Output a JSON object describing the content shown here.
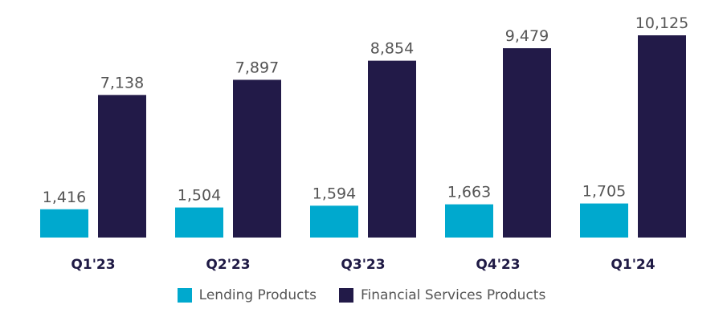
{
  "chart_data": {
    "type": "bar",
    "categories": [
      "Q1'23",
      "Q2'23",
      "Q3'23",
      "Q4'23",
      "Q1'24"
    ],
    "series": [
      {
        "name": "Lending Products",
        "color": "#00a9ce",
        "values": [
          1416,
          1504,
          1594,
          1663,
          1705
        ],
        "labels": [
          "1,416",
          "1,504",
          "1,594",
          "1,663",
          "1,705"
        ]
      },
      {
        "name": "Financial Services Products",
        "color": "#221a48",
        "values": [
          7138,
          7897,
          8854,
          9479,
          10125
        ],
        "labels": [
          "7,138",
          "7,897",
          "8,854",
          "9,479",
          "10,125"
        ]
      }
    ],
    "title": "",
    "xlabel": "",
    "ylabel": "",
    "ylim": [
      0,
      10125
    ],
    "grid": false,
    "legend_position": "bottom-center",
    "data_labels": true
  }
}
